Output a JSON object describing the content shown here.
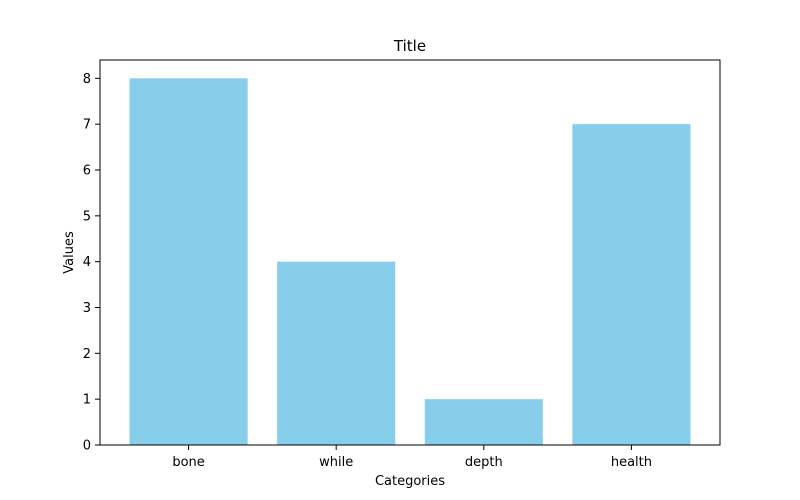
{
  "chart_data": {
    "type": "bar",
    "title": "Title",
    "xlabel": "Categories",
    "ylabel": "Values",
    "categories": [
      "bone",
      "while",
      "depth",
      "health"
    ],
    "values": [
      8,
      4,
      1,
      7
    ],
    "ylim": [
      0,
      8.4
    ],
    "yticks": [
      0,
      1,
      2,
      3,
      4,
      5,
      6,
      7,
      8
    ],
    "grid": false,
    "bar_color": "#87CEEB"
  }
}
